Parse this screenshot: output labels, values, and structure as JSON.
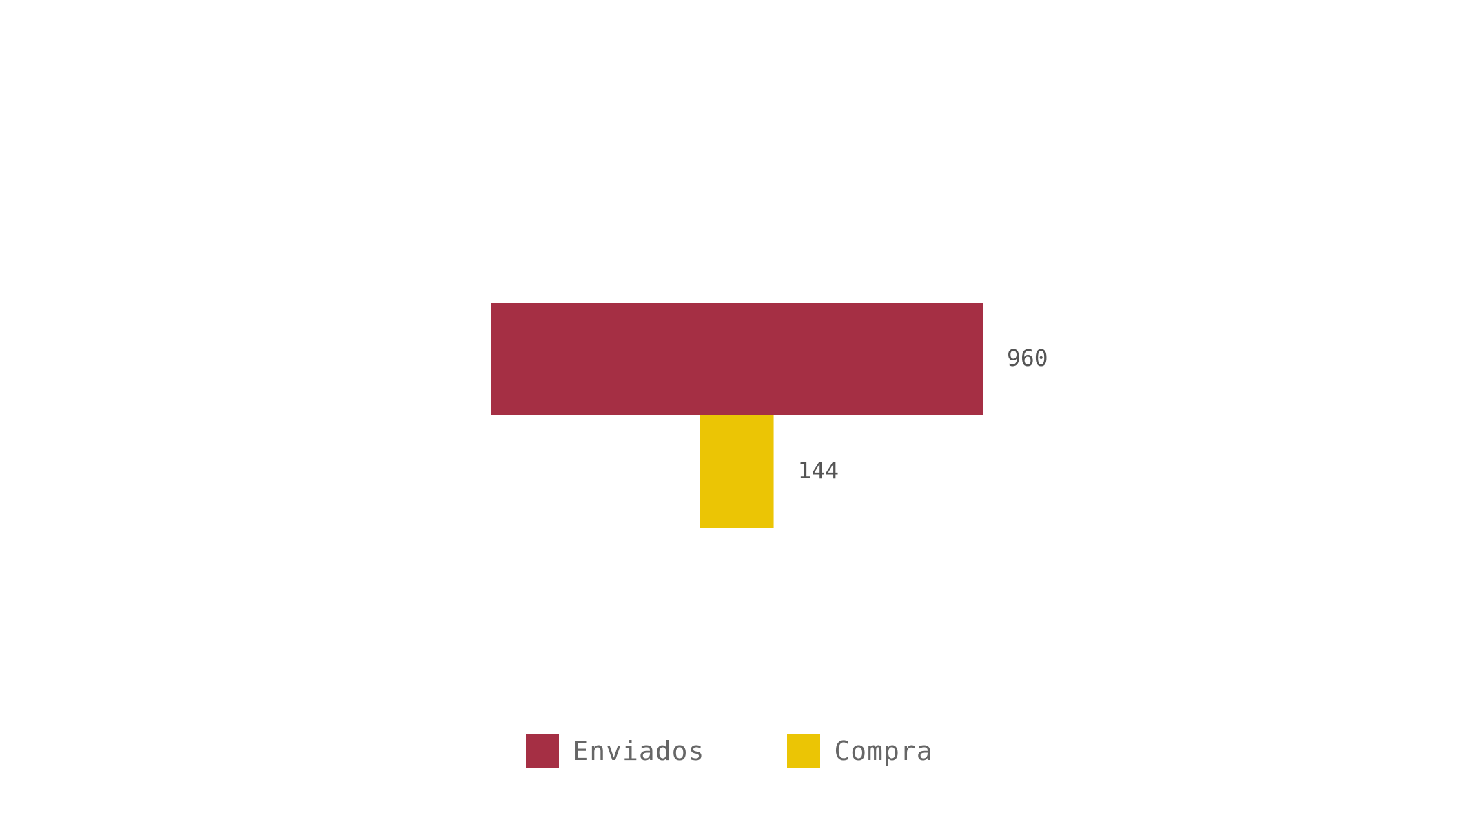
{
  "chart_data": {
    "type": "bar",
    "variant": "funnel",
    "categories": [
      "Enviados",
      "Compra"
    ],
    "values": [
      960,
      144
    ],
    "colors": [
      "#a52f44",
      "#ebc505"
    ],
    "data_labels": [
      "960",
      "144"
    ],
    "grid": false,
    "legend_position": "bottom-center",
    "legend": [
      {
        "label": "Enviados",
        "color": "#a52f44"
      },
      {
        "label": "Compra",
        "color": "#ebc505"
      }
    ]
  }
}
